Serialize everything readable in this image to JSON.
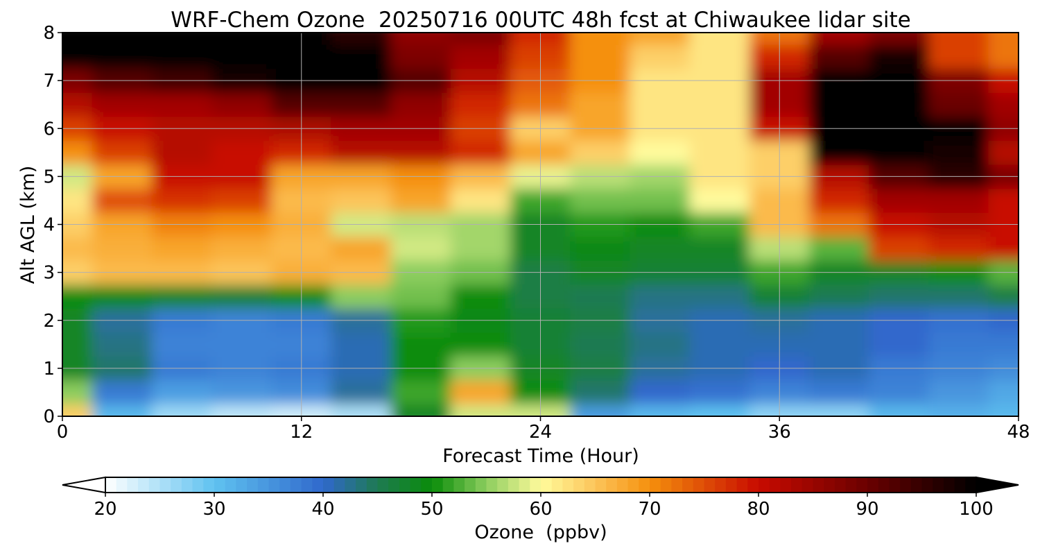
{
  "chart_data": {
    "type": "heatmap",
    "title": "WRF-Chem Ozone  20250716 00UTC 48h fcst at Chiwaukee lidar site",
    "xlabel": "Forecast Time (Hour)",
    "ylabel": "Alt AGL (km)",
    "xlim": [
      0,
      48
    ],
    "ylim": [
      0,
      8
    ],
    "xticks": [
      0,
      12,
      24,
      36,
      48
    ],
    "yticks": [
      0,
      1,
      2,
      3,
      4,
      5,
      6,
      7,
      8
    ],
    "grid": true,
    "x": [
      0,
      3,
      6,
      9,
      12,
      15,
      18,
      21,
      24,
      27,
      30,
      33,
      36,
      39,
      42,
      45,
      48
    ],
    "y": [
      0,
      0.5,
      1,
      1.5,
      2,
      2.5,
      3,
      3.5,
      4,
      4.5,
      5,
      5.5,
      6,
      6.5,
      7,
      7.5,
      8
    ],
    "values": [
      [
        64,
        31,
        26,
        24,
        23,
        25,
        48,
        58,
        58,
        34,
        31,
        30,
        27,
        27,
        31,
        32,
        31
      ],
      [
        55,
        38,
        34,
        35,
        36,
        42,
        52,
        68,
        50,
        44,
        40,
        39,
        37,
        38,
        37,
        35,
        33
      ],
      [
        48,
        44,
        38,
        37,
        38,
        41,
        50,
        55,
        48,
        46,
        42,
        41,
        40,
        41,
        38,
        37,
        36
      ],
      [
        48,
        43,
        37,
        37,
        37,
        41,
        50,
        50,
        47,
        45,
        43,
        41,
        41,
        41,
        40,
        38,
        38
      ],
      [
        48,
        42,
        38,
        37,
        38,
        42,
        51,
        49,
        47,
        46,
        42,
        41,
        42,
        41,
        40,
        39,
        40
      ],
      [
        50,
        49,
        48,
        47,
        50,
        55,
        54,
        50,
        46,
        45,
        43,
        43,
        47,
        45,
        44,
        44,
        46
      ],
      [
        64,
        66,
        66,
        65,
        67,
        66,
        55,
        54,
        46,
        48,
        47,
        47,
        52,
        48,
        48,
        50,
        53
      ],
      [
        66,
        67,
        68,
        67,
        66,
        68,
        58,
        56,
        48,
        49,
        48,
        48,
        57,
        53,
        76,
        78,
        80
      ],
      [
        64,
        68,
        71,
        70,
        67,
        58,
        57,
        56,
        48,
        51,
        50,
        52,
        66,
        72,
        80,
        82,
        80
      ],
      [
        62,
        75,
        77,
        76,
        66,
        65,
        68,
        62,
        52,
        54,
        54,
        60,
        66,
        78,
        84,
        84,
        80
      ],
      [
        58,
        68,
        80,
        80,
        68,
        68,
        70,
        66,
        59,
        57,
        56,
        62,
        64,
        82,
        92,
        96,
        88
      ],
      [
        70,
        76,
        82,
        80,
        78,
        82,
        82,
        78,
        68,
        64,
        60,
        62,
        64,
        100,
        100,
        98,
        82
      ],
      [
        76,
        80,
        82,
        82,
        83,
        84,
        84,
        76,
        64,
        68,
        62,
        62,
        80,
        100,
        102,
        100,
        86
      ],
      [
        82,
        84,
        84,
        86,
        92,
        92,
        86,
        78,
        72,
        68,
        62,
        62,
        84,
        100,
        102,
        90,
        84
      ],
      [
        88,
        92,
        94,
        98,
        100,
        100,
        92,
        82,
        74,
        70,
        62,
        62,
        84,
        100,
        102,
        88,
        80
      ],
      [
        100,
        102,
        102,
        102,
        102,
        100,
        88,
        84,
        76,
        70,
        64,
        62,
        78,
        92,
        98,
        76,
        72
      ],
      [
        102,
        102,
        102,
        102,
        102,
        96,
        86,
        88,
        78,
        70,
        68,
        62,
        72,
        84,
        88,
        76,
        72
      ]
    ],
    "colorbar": {
      "label": "Ozone  (ppbv)",
      "ticks": [
        20,
        30,
        40,
        50,
        60,
        70,
        80,
        90,
        100
      ],
      "vmin": 20,
      "vmax": 100,
      "extend": "both",
      "stops": [
        {
          "v": 20,
          "c": "#ffffff"
        },
        {
          "v": 30,
          "c": "#5fc2f0"
        },
        {
          "v": 40,
          "c": "#3068cc"
        },
        {
          "v": 45,
          "c": "#1e7a52"
        },
        {
          "v": 50,
          "c": "#0a8c0a"
        },
        {
          "v": 55,
          "c": "#8ccd5e"
        },
        {
          "v": 60,
          "c": "#fffb9c"
        },
        {
          "v": 65,
          "c": "#fcc45a"
        },
        {
          "v": 70,
          "c": "#f5900d"
        },
        {
          "v": 80,
          "c": "#c80a00"
        },
        {
          "v": 90,
          "c": "#6a0000"
        },
        {
          "v": 100,
          "c": "#000000"
        }
      ]
    }
  }
}
